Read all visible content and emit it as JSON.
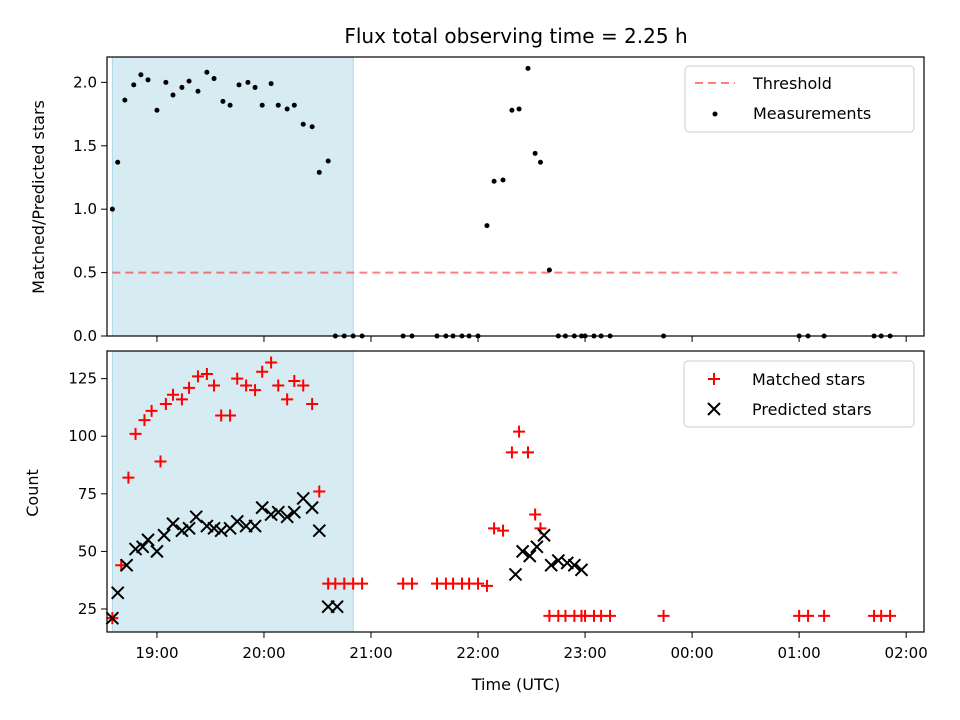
{
  "figure": {
    "title": "Flux total observing time = 2.25 h",
    "xlabel": "Time (UTC)"
  },
  "colors": {
    "shade": "#add8e6",
    "threshold": "#ff0000",
    "measurement": "#000000",
    "matched": "#ff0000",
    "predicted": "#000000"
  },
  "chart_data": [
    {
      "type": "scatter",
      "ylabel": "Matched/Predicted stars",
      "xlim": [
        "18:32",
        "02:10"
      ],
      "ylim": [
        0,
        2.2
      ],
      "shaded_span": [
        "18:35",
        "20:50"
      ],
      "threshold": {
        "y": 0.5,
        "x_start": "18:35",
        "x_end": "01:55"
      },
      "legend": {
        "position": "top-right",
        "entries": [
          "Threshold",
          "Measurements"
        ]
      },
      "yticks": [
        "0.0",
        "0.5",
        "1.0",
        "1.5",
        "2.0"
      ],
      "x": [
        "18:35",
        "18:38",
        "18:42",
        "18:47",
        "18:51",
        "18:55",
        "19:00",
        "19:05",
        "19:09",
        "19:14",
        "19:18",
        "19:23",
        "19:28",
        "19:32",
        "19:37",
        "19:41",
        "19:46",
        "19:51",
        "19:55",
        "19:59",
        "20:04",
        "20:08",
        "20:13",
        "20:17",
        "20:22",
        "20:27",
        "20:31",
        "20:36",
        "20:40",
        "20:45",
        "20:50",
        "20:55",
        "21:18",
        "21:23",
        "21:37",
        "21:42",
        "21:46",
        "21:51",
        "21:55",
        "22:00",
        "22:05",
        "22:09",
        "22:14",
        "22:19",
        "22:23",
        "22:28",
        "22:32",
        "22:35",
        "22:40",
        "22:45",
        "22:49",
        "22:54",
        "22:58",
        "23:00",
        "23:05",
        "23:09",
        "23:14",
        "23:44",
        "01:00",
        "01:05",
        "01:14",
        "01:42",
        "01:46",
        "01:51"
      ],
      "y": [
        1.0,
        1.37,
        1.86,
        1.98,
        2.06,
        2.02,
        1.78,
        2.0,
        1.9,
        1.96,
        2.01,
        1.93,
        2.08,
        2.03,
        1.85,
        1.82,
        1.98,
        2.0,
        1.96,
        1.82,
        1.99,
        1.82,
        1.79,
        1.82,
        1.67,
        1.65,
        1.29,
        1.38,
        0.0,
        0.0,
        0.0,
        0.0,
        0.0,
        0.0,
        0.0,
        0.0,
        0.0,
        0.0,
        0.0,
        0.0,
        0.87,
        1.22,
        1.23,
        1.78,
        1.79,
        2.11,
        1.44,
        1.37,
        0.52,
        0.0,
        0.0,
        0.0,
        0.0,
        0.0,
        0.0,
        0.0,
        0.0,
        0.0,
        0.0,
        0.0,
        0.0,
        0.0,
        0.0,
        0.0
      ]
    },
    {
      "type": "scatter",
      "ylabel": "Count",
      "xlim": [
        "18:32",
        "02:10"
      ],
      "ylim": [
        15,
        137
      ],
      "shaded_span": [
        "18:35",
        "20:50"
      ],
      "legend": {
        "position": "top-right",
        "entries": [
          "Matched stars",
          "Predicted stars"
        ]
      },
      "yticks": [
        "25",
        "50",
        "75",
        "100",
        "125"
      ],
      "xticks": [
        "19:00",
        "20:00",
        "21:00",
        "22:00",
        "23:00",
        "00:00",
        "01:00",
        "02:00"
      ],
      "series": [
        {
          "name": "Matched stars",
          "marker": "+",
          "x": [
            "18:35",
            "18:40",
            "18:44",
            "18:48",
            "18:53",
            "18:57",
            "19:02",
            "19:05",
            "19:09",
            "19:14",
            "19:18",
            "19:23",
            "19:28",
            "19:32",
            "19:36",
            "19:41",
            "19:45",
            "19:50",
            "19:55",
            "19:59",
            "20:04",
            "20:08",
            "20:13",
            "20:17",
            "20:22",
            "20:27",
            "20:31",
            "20:36",
            "20:40",
            "20:45",
            "20:50",
            "20:55",
            "21:18",
            "21:23",
            "21:37",
            "21:42",
            "21:46",
            "21:51",
            "21:55",
            "22:00",
            "22:05",
            "22:09",
            "22:14",
            "22:19",
            "22:23",
            "22:28",
            "22:32",
            "22:35",
            "22:40",
            "22:45",
            "22:49",
            "22:54",
            "22:58",
            "23:00",
            "23:05",
            "23:09",
            "23:14",
            "23:44",
            "01:00",
            "01:05",
            "01:14",
            "01:42",
            "01:46",
            "01:51"
          ],
          "values": [
            21,
            44,
            82,
            101,
            107,
            111,
            89,
            114,
            118,
            116,
            121,
            126,
            127,
            122,
            109,
            109,
            125,
            122,
            120,
            128,
            132,
            122,
            116,
            124,
            122,
            114,
            76,
            36,
            36,
            36,
            36,
            36,
            36,
            36,
            36,
            36,
            36,
            36,
            36,
            36,
            35,
            60,
            59,
            93,
            102,
            93,
            66,
            60,
            22,
            22,
            22,
            22,
            22,
            22,
            22,
            22,
            22,
            22,
            22,
            22,
            22,
            22,
            22,
            22
          ]
        },
        {
          "name": "Predicted stars",
          "marker": "x",
          "x": [
            "18:35",
            "18:38",
            "18:43",
            "18:48",
            "18:52",
            "18:55",
            "19:00",
            "19:04",
            "19:09",
            "19:14",
            "19:18",
            "19:22",
            "19:28",
            "19:32",
            "19:36",
            "19:41",
            "19:45",
            "19:50",
            "19:55",
            "19:59",
            "20:04",
            "20:08",
            "20:13",
            "20:17",
            "20:22",
            "20:27",
            "20:31",
            "20:36",
            "20:41",
            "22:21",
            "22:25",
            "22:29",
            "22:33",
            "22:37",
            "22:41",
            "22:45",
            "22:50",
            "22:54",
            "22:58"
          ],
          "values": [
            21,
            32,
            44,
            51,
            52,
            55,
            50,
            57,
            62,
            59,
            60,
            65,
            61,
            60,
            59,
            60,
            63,
            61,
            61,
            69,
            66,
            67,
            65,
            67,
            73,
            69,
            59,
            26,
            26,
            40,
            50,
            48,
            52,
            57,
            44,
            46,
            45,
            44,
            42
          ]
        }
      ]
    }
  ]
}
